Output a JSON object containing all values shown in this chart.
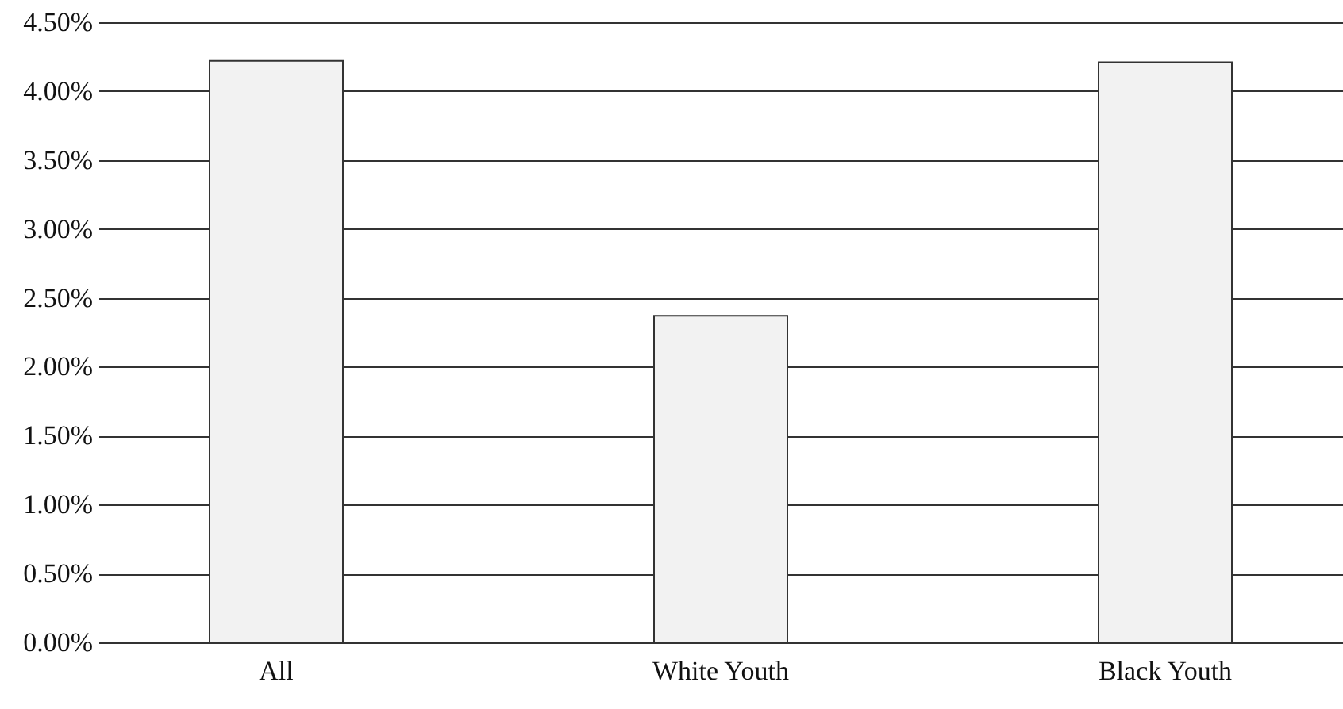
{
  "chart_data": {
    "type": "bar",
    "categories": [
      "All",
      "White Youth",
      "Black Youth"
    ],
    "values": [
      4.22,
      2.37,
      4.21
    ],
    "color": "#f2f2f2",
    "ylim": [
      0,
      4.5
    ],
    "yticks": [
      {
        "value": 0,
        "label": "0.00%"
      },
      {
        "value": 0.5,
        "label": "0.50%"
      },
      {
        "value": 1,
        "label": "1.00%"
      },
      {
        "value": 1.5,
        "label": "1.50%"
      },
      {
        "value": 2,
        "label": "2.00%"
      },
      {
        "value": 2.5,
        "label": "2.50%"
      },
      {
        "value": 3,
        "label": "3.00%"
      },
      {
        "value": 3.5,
        "label": "3.50%"
      },
      {
        "value": 4,
        "label": "4.00%"
      },
      {
        "value": 4.5,
        "label": "4.50%"
      }
    ],
    "grid": "y"
  }
}
